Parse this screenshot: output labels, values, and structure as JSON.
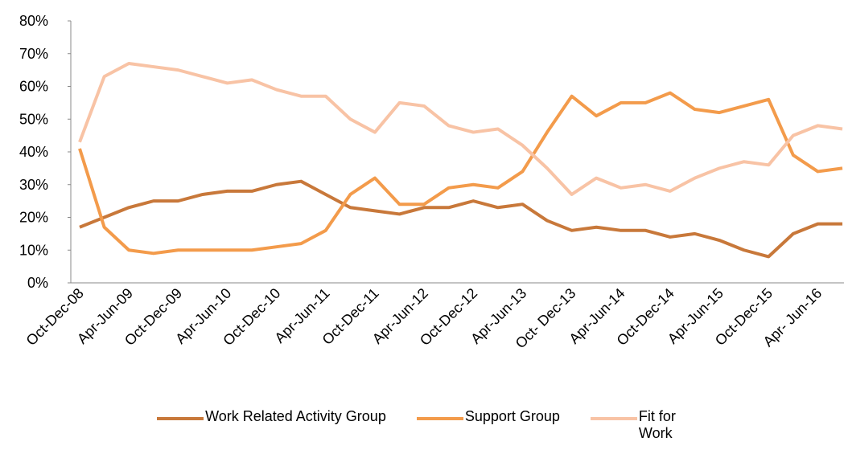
{
  "chart_data": {
    "type": "line",
    "categories": [
      "Oct-Dec-08",
      null,
      "Apr-Jun-09",
      null,
      "Oct-Dec-09",
      null,
      "Apr-Jun-10",
      null,
      "Oct-Dec-10",
      null,
      "Apr-Jun-11",
      null,
      "Oct-Dec-11",
      null,
      "Apr-Jun-12",
      null,
      "Oct-Dec-12",
      null,
      "Apr-Jun-13",
      null,
      "Oct- Dec-13",
      null,
      "Apr-Jun-14",
      null,
      "Oct-Dec-14",
      null,
      "Apr-Jun-15",
      null,
      "Oct-Dec-15",
      null,
      "Apr- Jun-16",
      null
    ],
    "series": [
      {
        "name": "Work Related Activity Group",
        "color": "#c8783a",
        "values": [
          17,
          20,
          23,
          25,
          25,
          27,
          28,
          28,
          30,
          31,
          27,
          23,
          22,
          21,
          23,
          23,
          25,
          23,
          24,
          19,
          16,
          17,
          16,
          16,
          14,
          15,
          13,
          10,
          8,
          15,
          18,
          18
        ]
      },
      {
        "name": "Support Group",
        "color": "#f39b4b",
        "values": [
          41,
          17,
          10,
          9,
          10,
          10,
          10,
          10,
          11,
          12,
          16,
          27,
          32,
          24,
          24,
          29,
          30,
          29,
          34,
          46,
          57,
          51,
          55,
          55,
          58,
          53,
          52,
          54,
          56,
          39,
          34,
          35
        ]
      },
      {
        "name": "Fit for Work",
        "color": "#f8c3a5",
        "values": [
          43,
          63,
          67,
          66,
          65,
          63,
          61,
          62,
          59,
          57,
          57,
          50,
          46,
          55,
          54,
          48,
          46,
          47,
          42,
          35,
          27,
          32,
          29,
          30,
          28,
          32,
          35,
          37,
          36,
          45,
          48,
          47
        ]
      }
    ],
    "ylim": [
      0,
      80
    ],
    "yticks": [
      {
        "value": 0,
        "label": "0%"
      },
      {
        "value": 10,
        "label": "10%"
      },
      {
        "value": 20,
        "label": "20%"
      },
      {
        "value": 30,
        "label": "30%"
      },
      {
        "value": 40,
        "label": "40%"
      },
      {
        "value": 50,
        "label": "50%"
      },
      {
        "value": 60,
        "label": "60%"
      },
      {
        "value": 70,
        "label": "70%"
      },
      {
        "value": 80,
        "label": "80%"
      }
    ],
    "legend": "bottom"
  }
}
